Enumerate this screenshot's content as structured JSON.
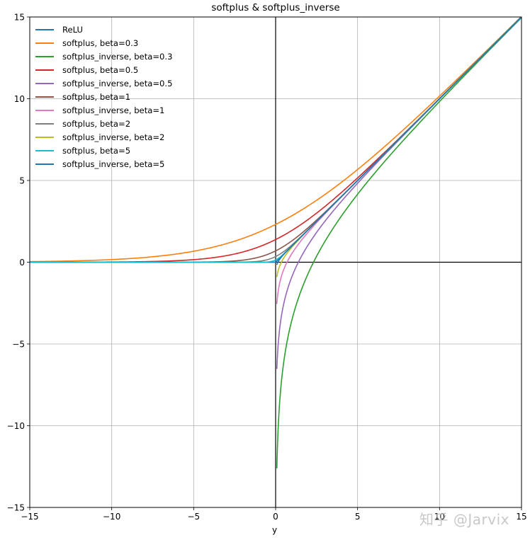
{
  "chart_data": {
    "type": "line",
    "title": "softplus & softplus_inverse",
    "xlabel": "y",
    "ylabel": "",
    "xlim": [
      -15,
      15
    ],
    "ylim": [
      -15,
      15
    ],
    "xticks": [
      -15,
      -10,
      -5,
      0,
      5,
      10,
      15
    ],
    "yticks": [
      -15,
      -10,
      -5,
      0,
      5,
      10,
      15
    ],
    "xtick_labels": [
      "−15",
      "−10",
      "−5",
      "0",
      "5",
      "10",
      "15"
    ],
    "ytick_labels": [
      "−15",
      "−10",
      "−5",
      "0",
      "5",
      "10",
      "15"
    ],
    "grid": true,
    "axhline": 0,
    "axvline": 0,
    "legend_position": "upper left",
    "series": [
      {
        "name": "ReLU",
        "color": "#1f77b4",
        "kind": "relu",
        "beta": null
      },
      {
        "name": "softplus, beta=0.3",
        "color": "#ff7f0e",
        "kind": "softplus",
        "beta": 0.3
      },
      {
        "name": "softplus_inverse, beta=0.3",
        "color": "#2ca02c",
        "kind": "softplus_inverse",
        "beta": 0.3,
        "min_value": -12.6
      },
      {
        "name": "softplus, beta=0.5",
        "color": "#d62728",
        "kind": "softplus",
        "beta": 0.5
      },
      {
        "name": "softplus_inverse, beta=0.5",
        "color": "#9467bd",
        "kind": "softplus_inverse",
        "beta": 0.5,
        "min_value": -6.5
      },
      {
        "name": "softplus, beta=1",
        "color": "#8c564b",
        "kind": "softplus",
        "beta": 1
      },
      {
        "name": "softplus_inverse, beta=1",
        "color": "#e377c2",
        "kind": "softplus_inverse",
        "beta": 1,
        "min_value": -2.5
      },
      {
        "name": "softplus, beta=2",
        "color": "#7f7f7f",
        "kind": "softplus",
        "beta": 2
      },
      {
        "name": "softplus_inverse, beta=2",
        "color": "#bcbd22",
        "kind": "softplus_inverse",
        "beta": 2,
        "min_value": -0.95
      },
      {
        "name": "softplus, beta=5",
        "color": "#17becf",
        "kind": "softplus",
        "beta": 5
      },
      {
        "name": "softplus_inverse, beta=5",
        "color": "#1f77b4",
        "kind": "softplus_inverse",
        "beta": 5,
        "min_value": 0
      }
    ],
    "inverse_x_start": 0.075,
    "sample_points": {
      "softplus_beta_0.3_at_0": 2.31,
      "softplus_beta_0.5_at_0": 1.39,
      "softplus_beta_1_at_0": 0.69,
      "softplus_beta_2_at_0": 0.35,
      "softplus_beta_5_at_0": 0.14,
      "softplus_inverse_beta_0.3_at_5": 4.3,
      "softplus_inverse_beta_0.3_zero_crossing": 2.31
    }
  },
  "watermark": "知乎 @Jarvix"
}
